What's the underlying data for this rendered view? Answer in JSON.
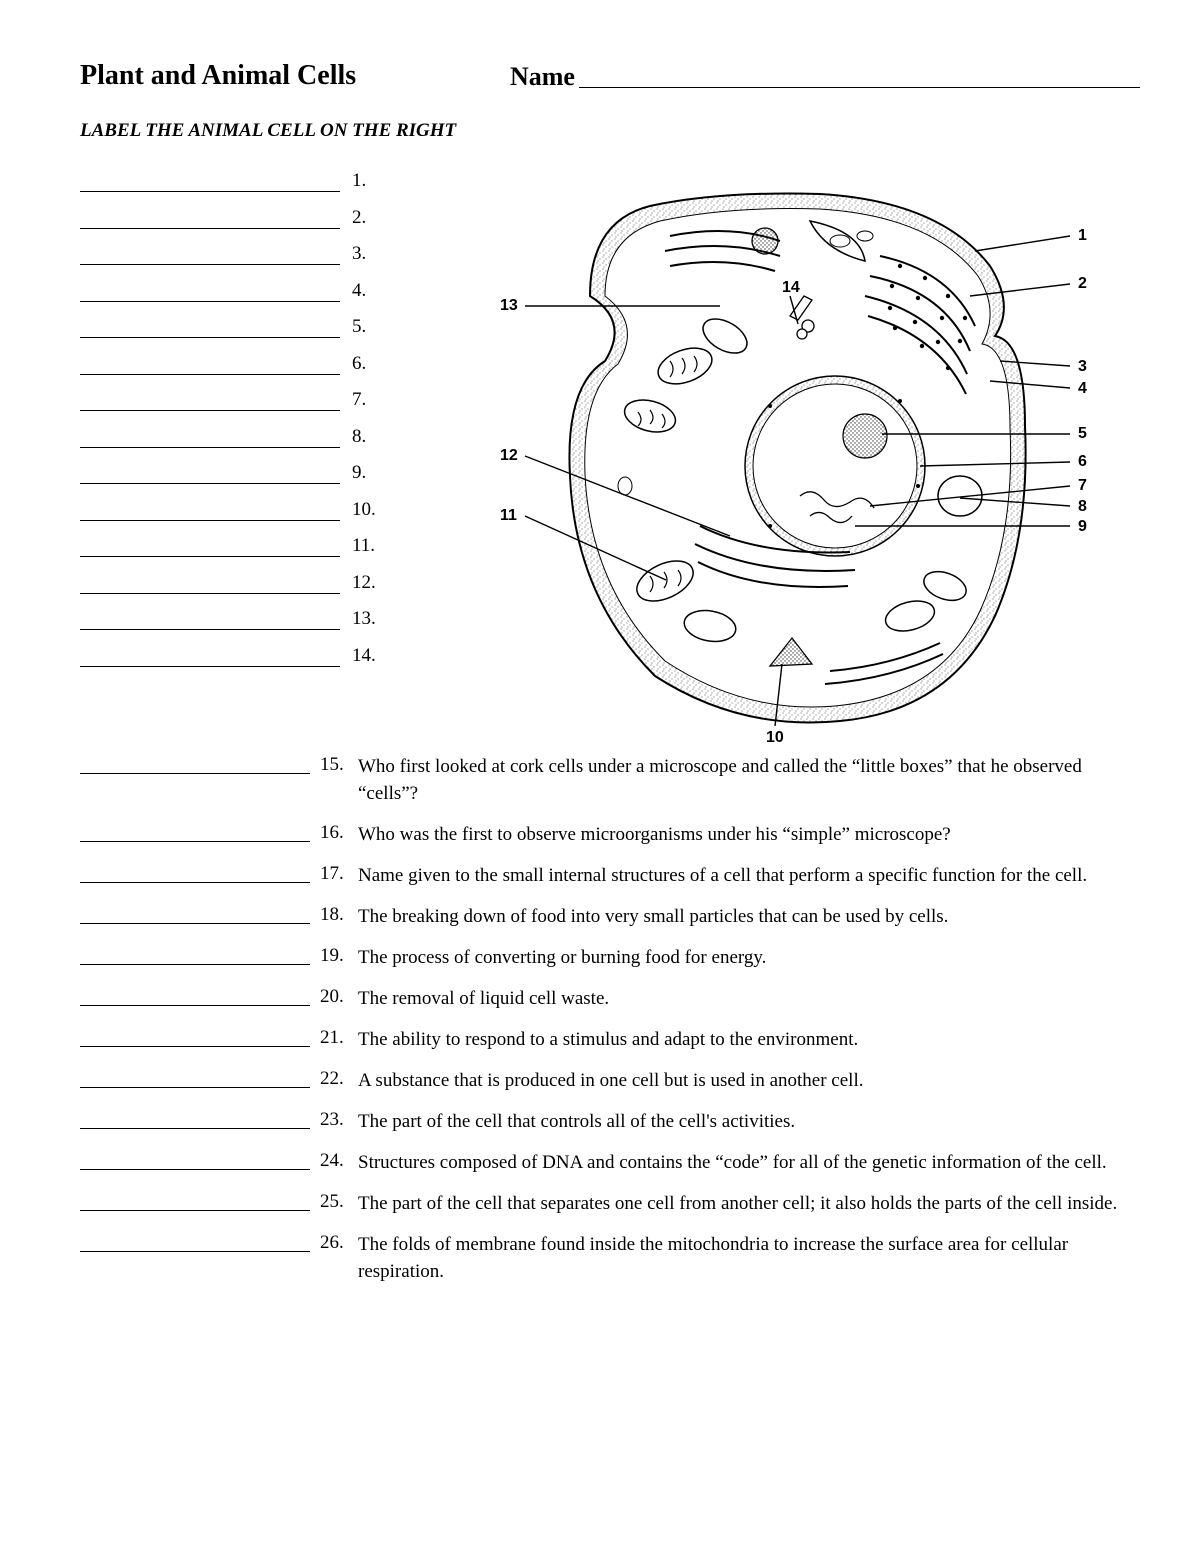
{
  "header": {
    "title": "Plant and Animal Cells",
    "name_label": "Name"
  },
  "instruction": "LABEL THE ANIMAL CELL ON THE RIGHT",
  "label_numbers": [
    "1.",
    "2.",
    "3.",
    "4.",
    "5.",
    "6.",
    "7.",
    "8.",
    "9.",
    "10.",
    "11.",
    "12.",
    "13.",
    "14."
  ],
  "diagram_labels": [
    "1",
    "2",
    "3",
    "4",
    "5",
    "6",
    "7",
    "8",
    "9",
    "10",
    "11",
    "12",
    "13",
    "14"
  ],
  "questions": [
    {
      "n": "15.",
      "t": "Who first looked at cork cells under a microscope and called the “little boxes” that he observed “cells”?"
    },
    {
      "n": "16.",
      "t": "Who was the first to observe microorganisms under his “simple” microscope?"
    },
    {
      "n": "17.",
      "t": "Name given to the small internal structures of a cell that perform a specific function for the cell."
    },
    {
      "n": "18.",
      "t": "The breaking down of food into very small particles that can be used by cells."
    },
    {
      "n": "19.",
      "t": "The process of converting or burning food for energy."
    },
    {
      "n": "20.",
      "t": "The removal of liquid cell waste."
    },
    {
      "n": "21.",
      "t": "The ability to respond to a stimulus and adapt to the environment."
    },
    {
      "n": "22.",
      "t": "A substance that is produced in one cell but is used in another cell."
    },
    {
      "n": "23.",
      "t": "The part of the cell that controls all of the cell's activities."
    },
    {
      "n": "24.",
      "t": "Structures composed of DNA and contains the “code” for all of the genetic information of the cell."
    },
    {
      "n": "25.",
      "t": "The part of the cell that separates one cell from another cell; it also holds the parts of the cell inside."
    },
    {
      "n": "26.",
      "t": "The folds of membrane found inside the mitochondria to increase the surface area for cellular respiration."
    }
  ],
  "colors": {
    "text": "#000000",
    "bg": "#ffffff",
    "stipple": "#888888",
    "line": "#000000"
  }
}
